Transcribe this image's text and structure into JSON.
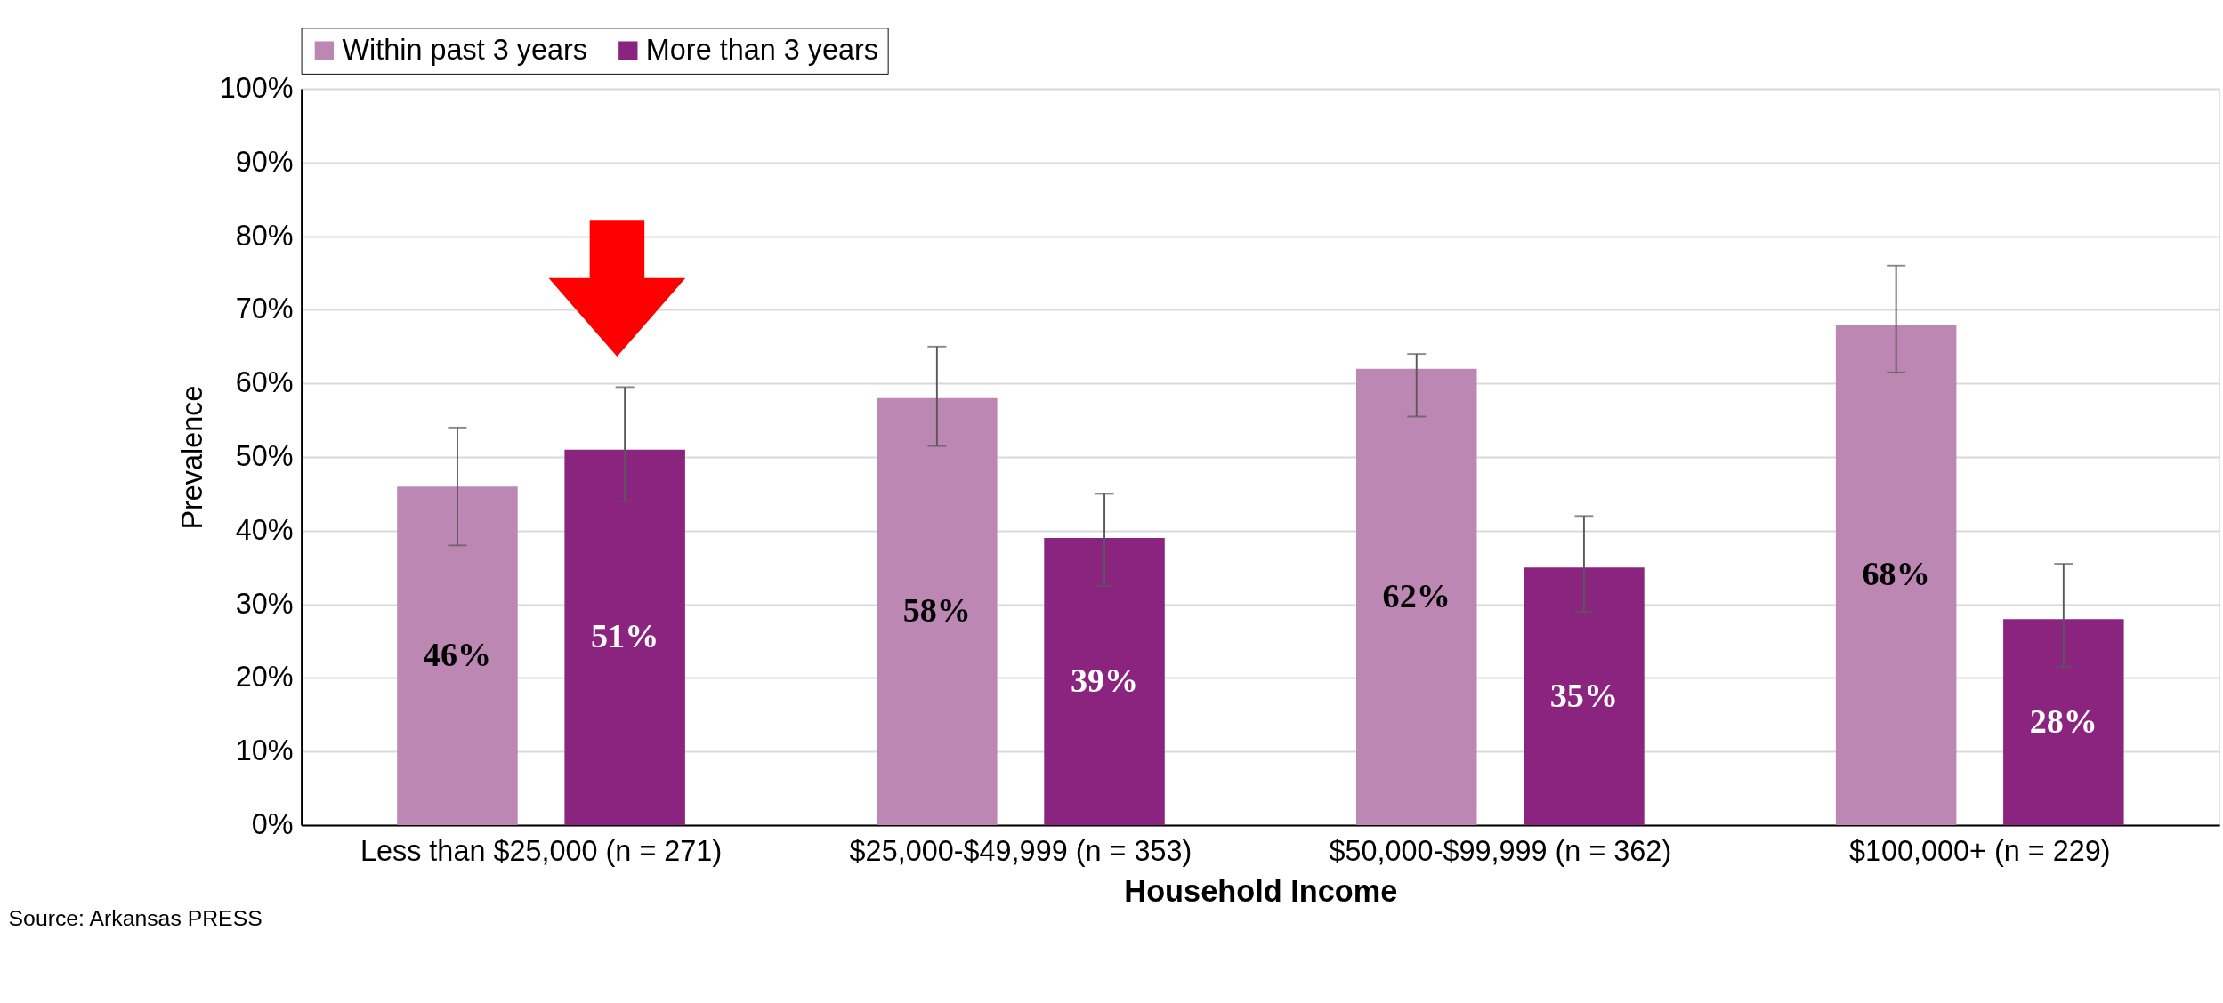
{
  "chart_data": {
    "type": "bar",
    "xlabel": "Household Income",
    "ylabel": "Prevalence",
    "categories": [
      "Less than $25,000 (n = 271)",
      "$25,000-$49,999 (n = 353)",
      "$50,000-$99,999 (n = 362)",
      "$100,000+ (n = 229)"
    ],
    "series": [
      {
        "name": "Within past 3 years",
        "color": "#bd87b3",
        "values": [
          46,
          58,
          62,
          68
        ],
        "errors": [
          [
            38,
            54
          ],
          [
            51.5,
            65
          ],
          [
            55.5,
            64
          ],
          [
            61.5,
            76
          ]
        ]
      },
      {
        "name": "More than 3 years",
        "color": "#8b247e",
        "values": [
          51,
          39,
          35,
          28
        ],
        "errors": [
          [
            44,
            59.5
          ],
          [
            32.5,
            45
          ],
          [
            29,
            42
          ],
          [
            21.5,
            35.5
          ]
        ]
      }
    ],
    "ylim": [
      0,
      100
    ],
    "yticks": [
      {
        "value": 0,
        "label": "0%"
      },
      {
        "value": 10,
        "label": "10%"
      },
      {
        "value": 20,
        "label": "20%"
      },
      {
        "value": 30,
        "label": "30%"
      },
      {
        "value": 40,
        "label": "40%"
      },
      {
        "value": 50,
        "label": "50%"
      },
      {
        "value": 60,
        "label": "60%"
      },
      {
        "value": 70,
        "label": "70%"
      },
      {
        "value": 80,
        "label": "80%"
      },
      {
        "value": 90,
        "label": "90%"
      },
      {
        "value": 100,
        "label": "100%"
      }
    ],
    "value_labels": [
      [
        "46%",
        "58%",
        "62%",
        "68%"
      ],
      [
        "51%",
        "39%",
        "35%",
        "28%"
      ]
    ],
    "grid": "y",
    "legend": "top",
    "annotations": [
      "Source: Arkansas PRESS"
    ]
  }
}
